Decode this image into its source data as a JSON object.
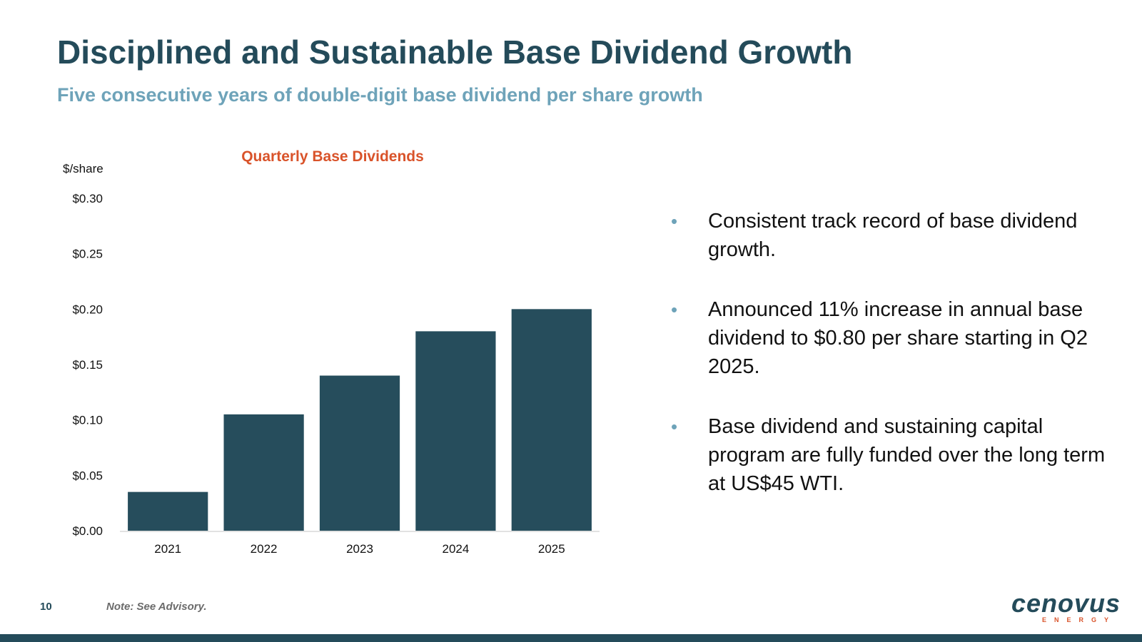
{
  "slide": {
    "title": "Disciplined and Sustainable Base Dividend Growth",
    "subtitle": "Five consecutive years of double-digit base dividend per share growth",
    "page_number": "10",
    "note": "Note: See Advisory."
  },
  "chart_data": {
    "type": "bar",
    "title": "Quarterly Base Dividends",
    "ylabel": "$/share",
    "xlabel": "",
    "categories": [
      "2021",
      "2022",
      "2023",
      "2024",
      "2025"
    ],
    "values": [
      0.035,
      0.105,
      0.14,
      0.18,
      0.2
    ],
    "ylim": [
      0,
      0.3
    ],
    "yticks": [
      0.0,
      0.05,
      0.1,
      0.15,
      0.2,
      0.25,
      0.3
    ],
    "ytick_labels": [
      "$0.00",
      "$0.05",
      "$0.10",
      "$0.15",
      "$0.20",
      "$0.25",
      "$0.30"
    ],
    "grid": false,
    "legend": "none",
    "bar_color": "#264d5c",
    "title_color": "#d9532a"
  },
  "bullets": [
    {
      "text": "Consistent track record of base dividend growth."
    },
    {
      "text": "Announced 11% increase in annual base dividend to $0.80 per share starting in Q2 2025."
    },
    {
      "text": "Base dividend and sustaining capital program are fully funded over the long term at US$45 WTI."
    }
  ],
  "bullet_symbol": "•",
  "logo": {
    "wordmark": "cenovus",
    "subtext": "ENERGY"
  },
  "colors": {
    "primary": "#244b5a",
    "accent": "#6ea3b9",
    "orange": "#d9532a"
  }
}
